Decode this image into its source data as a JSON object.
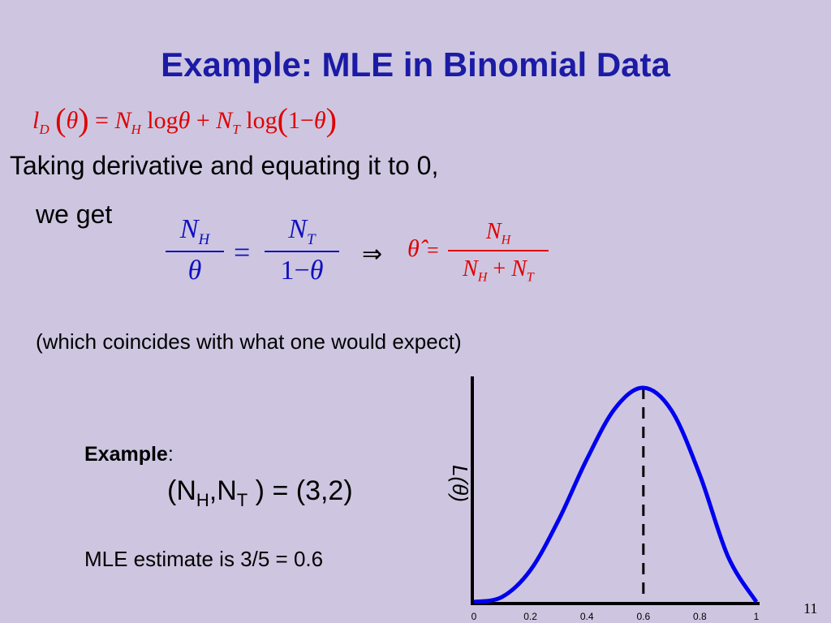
{
  "slide": {
    "title": "Example: MLE in Binomial Data",
    "line1": "Taking derivative and equating it to 0,",
    "line2": "we get",
    "note": "(which coincides with what one would expect)",
    "example_label": "Example",
    "example_colon": ":",
    "mle_text": "MLE estimate is 3/5 = 0.6",
    "page_number": "11"
  },
  "equation1": {
    "l": "l",
    "l_sub": "D",
    "theta": "θ",
    "eq": "=",
    "n": "N",
    "h": "H",
    "t": "T",
    "log": "log",
    "plus": "+",
    "one_minus": "1−"
  },
  "equation2": {
    "n": "N",
    "h": "H",
    "t": "T",
    "theta": "θ",
    "one_minus": "1−",
    "eq": "=",
    "implies": "⇒",
    "theta_hat": "θ̂",
    "plus": "+"
  },
  "example_value": {
    "open": "(N",
    "h": "H",
    "comma": ",N",
    "t": "T",
    "close": " ) = (3,2)"
  },
  "chart_data": {
    "type": "line",
    "ylabel": "L(θ)",
    "xlim": [
      0,
      1
    ],
    "x_ticks": [
      "0",
      "0.2",
      "0.4",
      "0.6",
      "0.8",
      "1"
    ],
    "series": [
      {
        "function": "θ^3 (1−θ)^2",
        "x": [
          0,
          0.1,
          0.2,
          0.3,
          0.4,
          0.5,
          0.6,
          0.7,
          0.8,
          0.9,
          1
        ],
        "values": [
          0,
          0.00081,
          0.00512,
          0.01323,
          0.02304,
          0.03125,
          0.03456,
          0.03087,
          0.02048,
          0.00729,
          0
        ]
      }
    ],
    "marker_line_x": 0.6,
    "colors": {
      "curve": "#0000ee",
      "axis": "#000000",
      "marker": "#000000"
    }
  }
}
